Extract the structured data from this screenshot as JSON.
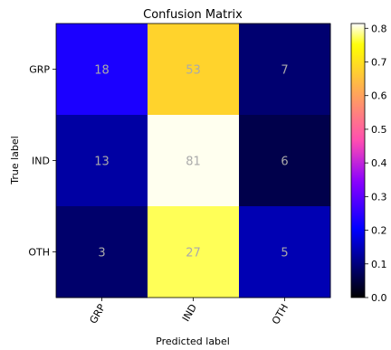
{
  "chart_data": {
    "type": "heatmap",
    "title": "Confusion Matrix",
    "xlabel": "Predicted label",
    "ylabel": "True label",
    "row_labels": [
      "GRP",
      "IND",
      "OTH"
    ],
    "col_labels": [
      "GRP",
      "IND",
      "OTH"
    ],
    "values": [
      [
        18,
        53,
        7
      ],
      [
        13,
        81,
        6
      ],
      [
        3,
        27,
        5
      ]
    ],
    "normalized": [
      [
        0.2308,
        0.6795,
        0.0897
      ],
      [
        0.13,
        0.81,
        0.06
      ],
      [
        0.0857,
        0.7714,
        0.1429
      ]
    ],
    "colormap": "gnuplot2",
    "colorbar": {
      "range": [
        0.0,
        0.8142
      ],
      "ticks": [
        0.0,
        0.1,
        0.2,
        0.3,
        0.4,
        0.5,
        0.6,
        0.7,
        0.8
      ],
      "tick_labels": [
        "0.0",
        "0.1",
        "0.2",
        "0.3",
        "0.4",
        "0.5",
        "0.6",
        "0.7",
        "0.8"
      ]
    },
    "annotation_color": "#aaaaaa",
    "grid": false
  }
}
